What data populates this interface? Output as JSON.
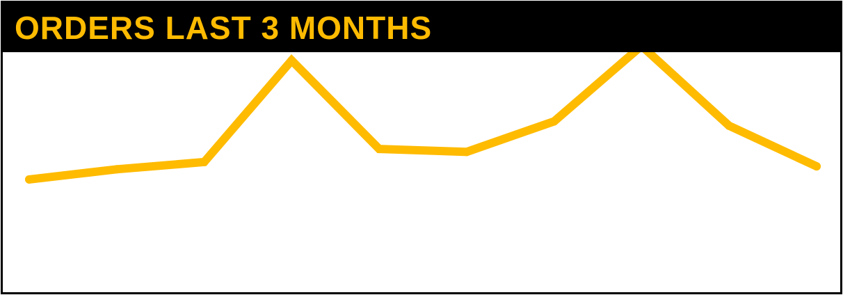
{
  "header": {
    "title": "ORDERS LAST 3 MONTHS"
  },
  "colors": {
    "accent": "#FFBB00",
    "header_bg": "#000000",
    "background": "#FFFFFF"
  },
  "chart_data": {
    "type": "line",
    "title": "ORDERS LAST 3 MONTHS",
    "xlabel": "",
    "ylabel": "",
    "grid": false,
    "legend": "none",
    "x": [
      1,
      2,
      3,
      4,
      5,
      6,
      7,
      8,
      9,
      10
    ],
    "series": [
      {
        "values": [
          18,
          25,
          30,
          100,
          39,
          37,
          58,
          110,
          55,
          27
        ]
      }
    ],
    "ylim": [
      -40,
      120
    ]
  }
}
